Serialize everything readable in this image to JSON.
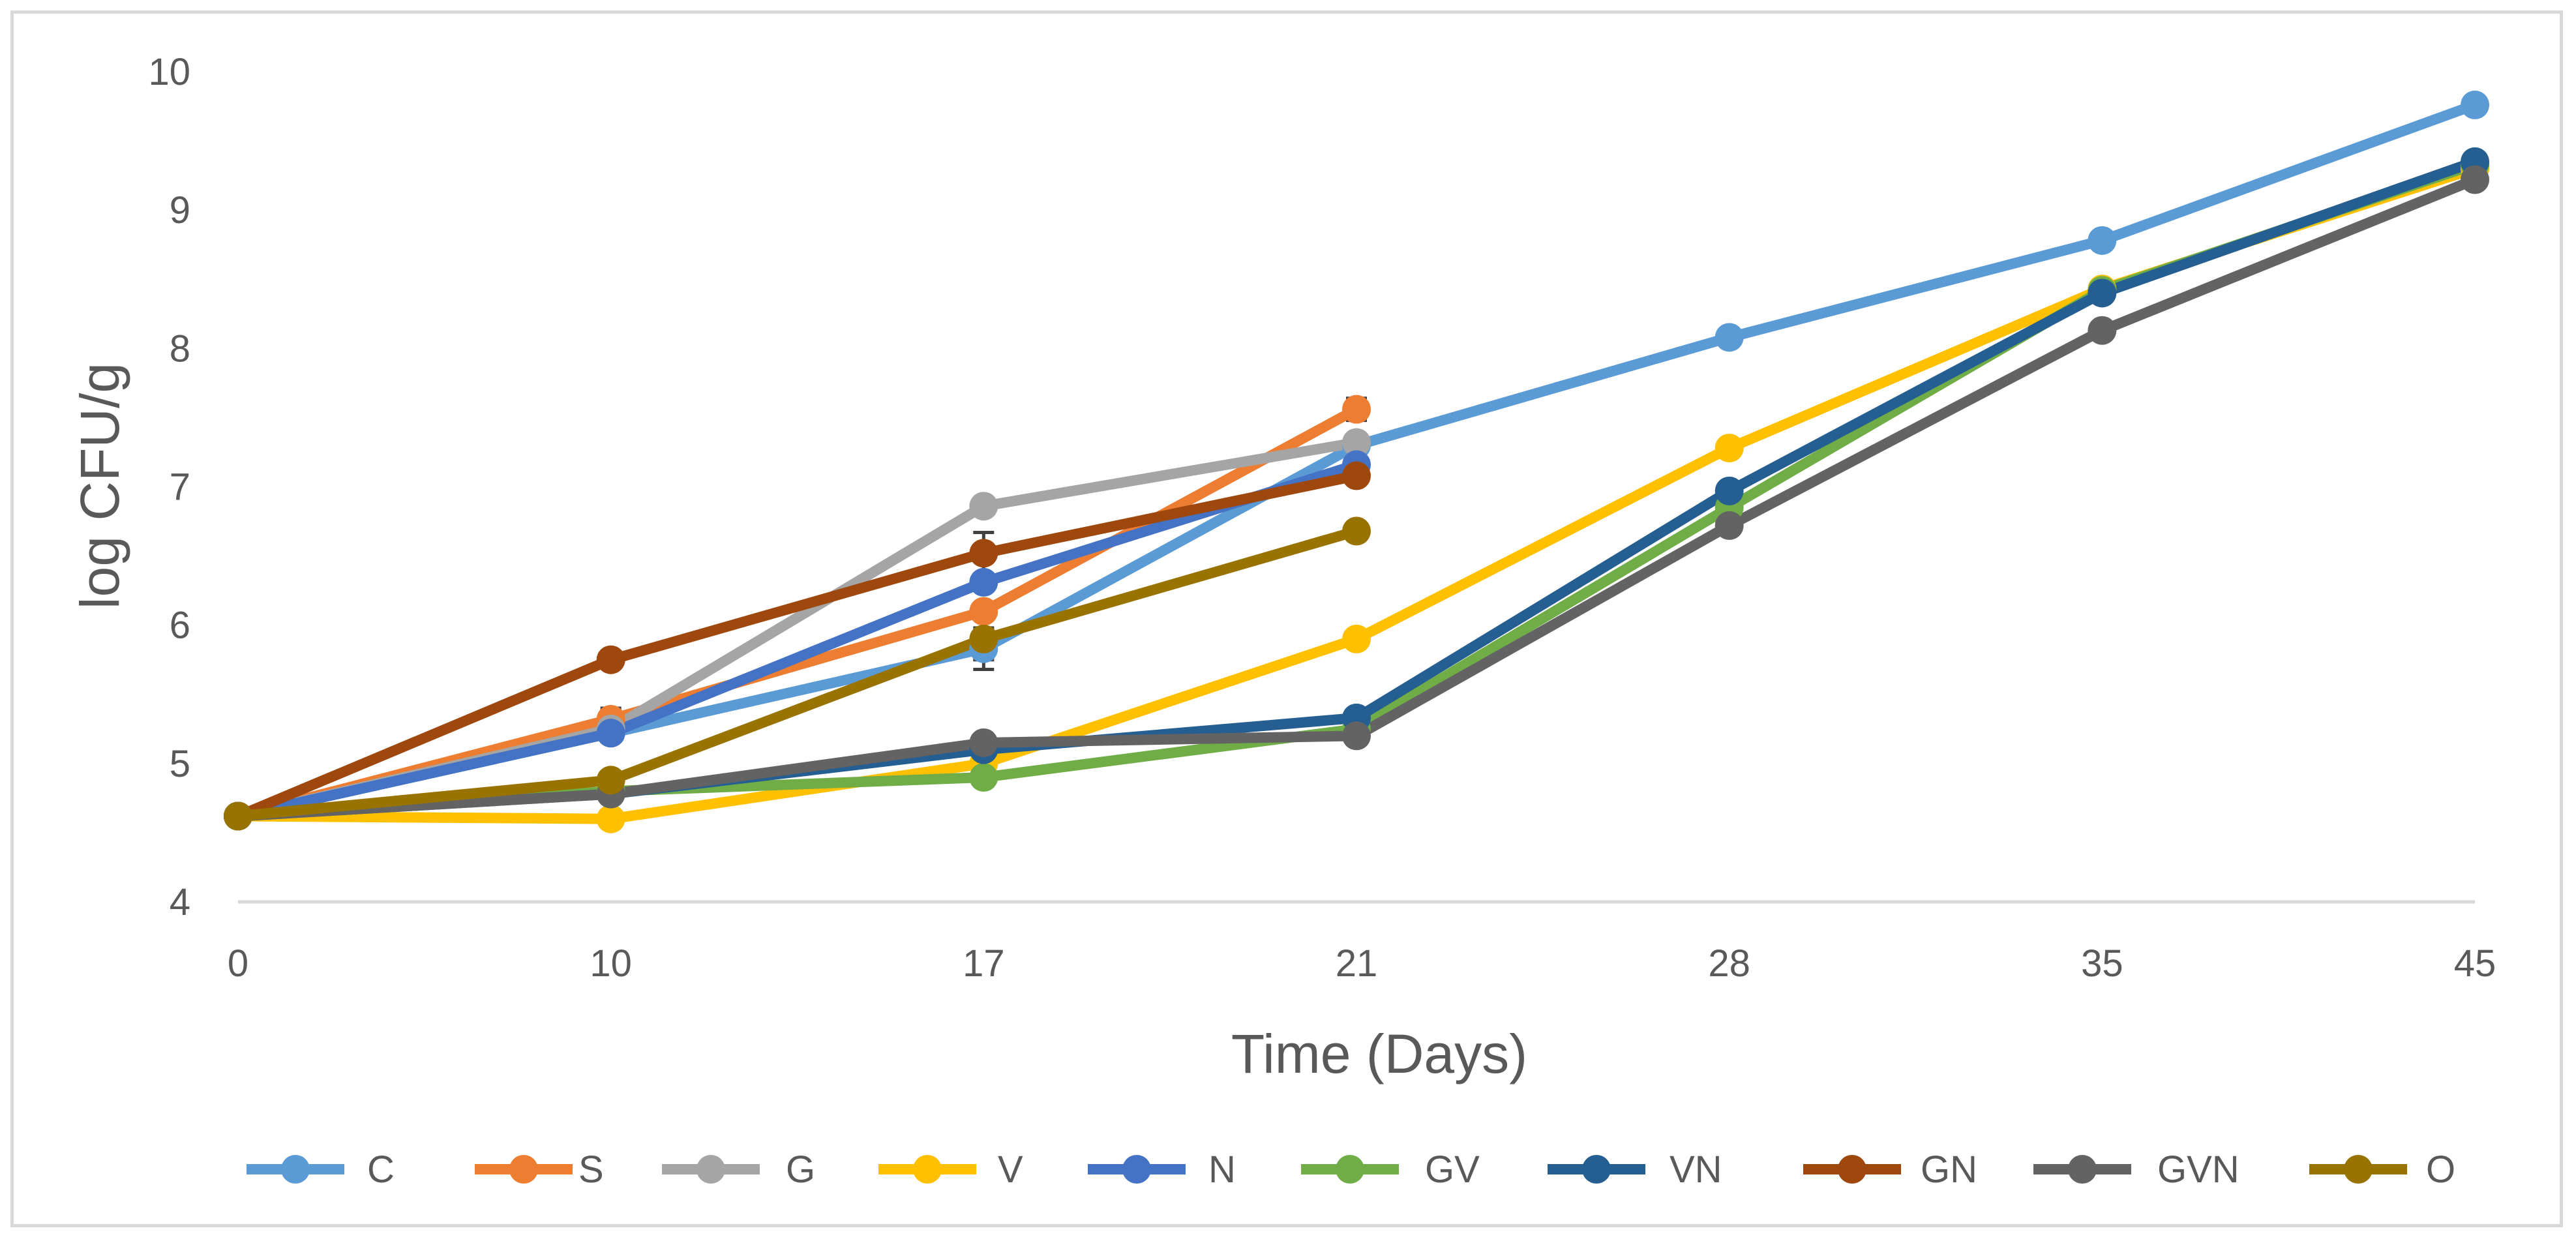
{
  "chart_data": {
    "type": "line",
    "title": "",
    "xlabel": "Time (Days)",
    "ylabel": "log CFU/g",
    "categories": [
      "0",
      "10",
      "17",
      "21",
      "28",
      "35",
      "45"
    ],
    "ylim": [
      4,
      10
    ],
    "yticks": [
      4,
      5,
      6,
      7,
      8,
      9,
      10
    ],
    "grid": false,
    "legend": "bottom",
    "series": [
      {
        "name": "C",
        "color": "#5b9bd5",
        "values": [
          4.62,
          5.22,
          5.83,
          7.3,
          8.08,
          8.78,
          9.76
        ],
        "err": [
          0,
          0,
          0.15,
          0,
          0,
          0,
          0
        ]
      },
      {
        "name": "S",
        "color": "#ed7d31",
        "values": [
          4.62,
          5.32,
          6.1,
          7.56,
          null,
          null,
          null
        ],
        "err": [
          0,
          0.08,
          0,
          0.08,
          0,
          0,
          0
        ]
      },
      {
        "name": "G",
        "color": "#a5a5a5",
        "values": [
          4.62,
          5.25,
          6.86,
          7.32,
          null,
          null,
          null
        ],
        "err": [
          0,
          0,
          0.05,
          0,
          0,
          0,
          0
        ]
      },
      {
        "name": "V",
        "color": "#ffc000",
        "values": [
          4.62,
          4.6,
          5.0,
          5.9,
          7.28,
          8.43,
          9.3
        ],
        "err": [
          0,
          0,
          0,
          0,
          0,
          0,
          0
        ]
      },
      {
        "name": "N",
        "color": "#4472c4",
        "values": [
          4.62,
          5.22,
          6.31,
          7.16,
          null,
          null,
          null
        ],
        "err": [
          0,
          0,
          0,
          0,
          0,
          0,
          0
        ]
      },
      {
        "name": "GV",
        "color": "#70ad47",
        "values": [
          4.62,
          4.8,
          4.9,
          5.25,
          6.85,
          8.42,
          9.33
        ],
        "err": [
          0,
          0,
          0.06,
          0,
          0,
          0,
          0
        ]
      },
      {
        "name": "VN",
        "color": "#255e91",
        "values": [
          4.62,
          4.78,
          5.1,
          5.33,
          6.97,
          8.4,
          9.35
        ],
        "err": [
          0,
          0,
          0,
          0,
          0,
          0,
          0
        ]
      },
      {
        "name": "GN",
        "color": "#9e480e",
        "values": [
          4.62,
          5.75,
          6.52,
          7.08,
          null,
          null,
          null
        ],
        "err": [
          0,
          0,
          0.15,
          0,
          0,
          0,
          0
        ]
      },
      {
        "name": "GVN",
        "color": "#636363",
        "values": [
          4.62,
          4.78,
          5.15,
          5.2,
          6.72,
          8.13,
          9.22
        ],
        "err": [
          0,
          0,
          0,
          0,
          0,
          0,
          0
        ]
      },
      {
        "name": "O",
        "color": "#997300",
        "values": [
          4.62,
          4.88,
          5.9,
          6.68,
          null,
          null,
          null
        ],
        "err": [
          0,
          0,
          0.15,
          0,
          0,
          0,
          0
        ]
      }
    ]
  }
}
